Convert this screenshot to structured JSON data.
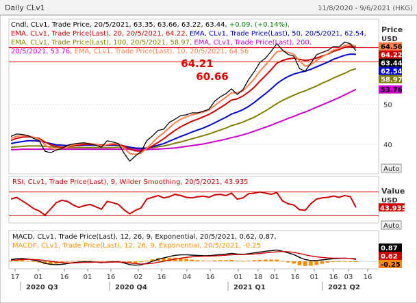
{
  "window": {
    "title": "Daily CLv1",
    "date_range": "11/8/2020 - 9/6/2021 (HKG)"
  },
  "price_panel": {
    "legend_lines": [
      [
        {
          "t": "Cndl, CLv1, Trade Price, 20/5/2021, 63.35, 63.66, 63.22, 63.44, ",
          "c": "#000000"
        },
        {
          "t": "+0.09, (+0.14%),",
          "c": "#008000"
        }
      ],
      [
        {
          "t": "EMA, CLv1, Trade Price(Last),  20,  20/5/2021, 64.22, ",
          "c": "#cc0000"
        },
        {
          "t": "EMA, CLv1, Trade Price(Last),   50,  20/5/2021, 62.54,",
          "c": "#0000cc"
        }
      ],
      [
        {
          "t": "EMA, CLv1, Trade Price(Last),  100,  20/5/2021, 58.97, ",
          "c": "#808000"
        },
        {
          "t": "EMA, CLv1, Trade Price(Last),  200,",
          "c": "#cc00cc"
        }
      ],
      [
        {
          "t": "20/5/2021, 53.76, ",
          "c": "#cc00cc"
        },
        {
          "t": "EMA, CLv1, Trade Price(Last),  10,  20/5/2021, 64.56",
          "c": "#ff7f50"
        }
      ]
    ],
    "axis_title": "Price",
    "axis_unit": "USD",
    "ticks": [
      "60",
      "50",
      "40"
    ],
    "auto_label": "Auto",
    "annotations": [
      "64.21",
      "60.66"
    ],
    "value_tags": [
      {
        "text": "64.56",
        "bg": "#ff7f50",
        "fg": "#000000"
      },
      {
        "text": "64.22",
        "bg": "#cc0000",
        "fg": "#ffffff"
      },
      {
        "text": "63.44",
        "bg": "#000000",
        "fg": "#ffffff"
      },
      {
        "text": "62.54",
        "bg": "#0000cc",
        "fg": "#ffffff"
      },
      {
        "text": "58.97",
        "bg": "#808000",
        "fg": "#ffffff"
      },
      {
        "text": "53.76",
        "bg": "#cc00cc",
        "fg": "#000000"
      }
    ]
  },
  "rsi_panel": {
    "legend": "RSI, CLv1, Trade Price(Last),   9,  Wilder Smoothing,  20/5/2021, 43.935",
    "axis_title": "Value",
    "axis_unit": "USD",
    "value_tag": {
      "text": "43.935",
      "bg": "#cc0000",
      "fg": "#ffffff"
    },
    "auto_label": "Auto"
  },
  "macd_panel": {
    "legend_lines": [
      "MACD, CLv1, Trade Price(Last),   12,  26,  9,  Exponential,  20/5/2021, 0.62, 0.87,",
      "MACDF, CLv1, Trade Price(Last),   12,  26,  9,  Exponential,  20/5/2021, -0.25"
    ],
    "value_tags": [
      {
        "text": "0.87",
        "bg": "#000000",
        "fg": "#ffffff"
      },
      {
        "text": "0.62",
        "bg": "#cc0000",
        "fg": "#ffffff"
      },
      {
        "text": "-0.25",
        "bg": "#ff8c00",
        "fg": "#000000"
      }
    ]
  },
  "x_axis": {
    "day_ticks": [
      "17",
      "01",
      "16",
      "01",
      "16",
      "02",
      "16",
      "04",
      "16",
      "01",
      "18",
      "01",
      "16",
      "01",
      "16",
      "03",
      "16",
      "01"
    ],
    "quarters": [
      "2020 Q3",
      "2020 Q4",
      "2021 Q1",
      "2021 Q2"
    ]
  },
  "chart_data": [
    {
      "type": "line",
      "title": "Daily CLv1",
      "ylabel": "Price USD",
      "x_range": [
        "11/8/2020",
        "9/6/2021"
      ],
      "ylim": [
        33,
        71
      ],
      "grid": true,
      "series": [
        {
          "name": "Cndl CLv1 Trade Price (close)",
          "color": "#000000",
          "values": [
            42.0,
            42.6,
            42.5,
            42.2,
            41.5,
            40.9,
            38.3,
            37.9,
            38.6,
            38.9,
            39.8,
            40.1,
            40.3,
            40.4,
            40.1,
            39.8,
            39.3,
            40.9,
            40.6,
            40.2,
            37.8,
            35.8,
            37.1,
            38.2,
            40.9,
            42.1,
            43.5,
            43.8,
            45.5,
            46.3,
            47.2,
            47.4,
            47.9,
            47.9,
            48.3,
            48.8,
            50.8,
            51.9,
            52.7,
            53.9,
            52.5,
            53.7,
            56.2,
            58.2,
            60.5,
            61.6,
            63.3,
            65.2,
            63.6,
            62.5,
            62.1,
            59.0,
            58.3,
            60.3,
            62.4,
            63.0,
            63.5,
            64.5,
            64.4,
            65.6,
            65.2,
            63.4
          ]
        },
        {
          "name": "EMA 10",
          "color": "#ff7f50",
          "values": [
            41.5,
            42.0,
            42.2,
            42.2,
            41.8,
            41.3,
            39.9,
            39.0,
            38.8,
            38.9,
            39.4,
            39.9,
            40.2,
            40.3,
            40.2,
            40.0,
            39.6,
            40.0,
            40.2,
            40.1,
            39.0,
            37.7,
            37.5,
            37.8,
            39.0,
            40.4,
            41.8,
            42.9,
            44.2,
            45.4,
            46.3,
            46.9,
            47.4,
            47.7,
            48.1,
            48.6,
            49.7,
            50.8,
            51.8,
            52.9,
            52.9,
            53.4,
            54.8,
            56.4,
            58.3,
            59.9,
            61.5,
            63.2,
            63.4,
            63.0,
            62.6,
            60.9,
            59.6,
            59.9,
            61.0,
            61.9,
            62.7,
            63.6,
            64.0,
            64.8,
            65.0,
            64.56
          ]
        },
        {
          "name": "EMA 20",
          "color": "#cc0000",
          "values": [
            41.0,
            41.5,
            41.8,
            41.9,
            41.8,
            41.5,
            40.6,
            39.9,
            39.5,
            39.3,
            39.4,
            39.6,
            39.8,
            40.0,
            40.0,
            40.0,
            39.8,
            39.9,
            40.0,
            40.0,
            39.6,
            38.8,
            38.4,
            38.3,
            38.8,
            39.6,
            40.5,
            41.4,
            42.5,
            43.5,
            44.4,
            45.1,
            45.8,
            46.3,
            46.9,
            47.5,
            48.3,
            49.2,
            50.1,
            51.1,
            51.4,
            52.1,
            53.1,
            54.3,
            55.8,
            57.2,
            58.7,
            60.3,
            61.0,
            61.4,
            61.6,
            61.3,
            61.0,
            61.2,
            61.6,
            62.1,
            62.6,
            63.3,
            63.7,
            64.3,
            64.6,
            64.22
          ]
        },
        {
          "name": "EMA 50",
          "color": "#0000cc",
          "values": [
            40.2,
            40.5,
            40.7,
            40.9,
            40.9,
            40.8,
            40.5,
            40.2,
            39.9,
            39.8,
            39.7,
            39.7,
            39.7,
            39.8,
            39.8,
            39.8,
            39.7,
            39.8,
            39.8,
            39.8,
            39.6,
            39.3,
            39.1,
            39.0,
            39.1,
            39.4,
            39.8,
            40.2,
            40.8,
            41.4,
            42.0,
            42.5,
            43.1,
            43.6,
            44.1,
            44.7,
            45.4,
            46.1,
            46.8,
            47.6,
            48.1,
            48.7,
            49.5,
            50.5,
            51.6,
            52.7,
            53.9,
            55.2,
            56.2,
            57.0,
            57.6,
            58.0,
            58.3,
            58.8,
            59.4,
            60.0,
            60.6,
            61.3,
            61.8,
            62.3,
            62.6,
            62.54
          ]
        },
        {
          "name": "EMA 100",
          "color": "#808000",
          "values": [
            39.3,
            39.4,
            39.5,
            39.6,
            39.6,
            39.6,
            39.5,
            39.4,
            39.3,
            39.2,
            39.2,
            39.2,
            39.2,
            39.2,
            39.2,
            39.2,
            39.2,
            39.2,
            39.2,
            39.3,
            39.2,
            39.1,
            39.0,
            39.0,
            39.1,
            39.2,
            39.4,
            39.6,
            39.9,
            40.3,
            40.6,
            41.0,
            41.4,
            41.8,
            42.2,
            42.6,
            43.1,
            43.6,
            44.1,
            44.7,
            45.1,
            45.6,
            46.2,
            46.8,
            47.6,
            48.4,
            49.3,
            50.2,
            51.0,
            51.7,
            52.3,
            52.9,
            53.4,
            54.0,
            54.6,
            55.3,
            55.9,
            56.6,
            57.2,
            57.8,
            58.5,
            58.97
          ]
        },
        {
          "name": "EMA 200",
          "color": "#cc00cc",
          "values": [
            38.7,
            38.7,
            38.8,
            38.8,
            38.8,
            38.8,
            38.8,
            38.8,
            38.8,
            38.8,
            38.8,
            38.8,
            38.8,
            38.8,
            38.8,
            38.8,
            38.8,
            38.8,
            38.8,
            38.8,
            38.8,
            38.8,
            38.7,
            38.7,
            38.7,
            38.8,
            38.8,
            38.9,
            39.0,
            39.1,
            39.3,
            39.5,
            39.7,
            39.9,
            40.1,
            40.4,
            40.7,
            41.0,
            41.3,
            41.7,
            42.0,
            42.4,
            42.8,
            43.3,
            43.8,
            44.3,
            44.8,
            45.4,
            45.9,
            46.5,
            47.0,
            47.6,
            48.1,
            48.7,
            49.3,
            49.9,
            50.5,
            51.1,
            51.7,
            52.4,
            53.1,
            53.76
          ]
        }
      ],
      "horizontal_lines": [
        64.21,
        60.66
      ]
    },
    {
      "type": "line",
      "title": "RSI",
      "ylim": [
        20,
        80
      ],
      "series": [
        {
          "name": "RSI 9",
          "color": "#cc0000",
          "values": [
            58,
            61,
            55,
            49,
            42,
            38,
            31,
            41,
            52,
            56,
            54,
            48,
            44,
            47,
            49,
            45,
            41,
            54,
            52,
            49,
            40,
            33,
            39,
            43,
            58,
            61,
            64,
            60,
            62,
            66,
            64,
            61,
            60,
            62,
            63,
            61,
            65,
            66,
            64,
            68,
            58,
            60,
            67,
            68,
            70,
            68,
            66,
            69,
            55,
            50,
            48,
            40,
            39,
            50,
            58,
            60,
            61,
            63,
            61,
            64,
            62,
            43.935
          ]
        }
      ],
      "horizontal_lines": [
        70,
        30
      ]
    },
    {
      "type": "line",
      "title": "MACD",
      "series": [
        {
          "name": "MACD 12,26,9",
          "color": "#000000",
          "values": [
            0.6,
            0.9,
            1.0,
            0.8,
            0.4,
            0.0,
            -0.7,
            -1.1,
            -1.2,
            -1.1,
            -0.8,
            -0.5,
            -0.3,
            -0.2,
            -0.2,
            -0.3,
            -0.5,
            -0.3,
            -0.2,
            -0.2,
            -0.6,
            -1.2,
            -1.4,
            -1.3,
            -0.7,
            0.0,
            0.7,
            1.2,
            1.7,
            2.1,
            2.3,
            2.3,
            2.2,
            2.1,
            2.0,
            2.0,
            2.2,
            2.4,
            2.6,
            2.8,
            2.6,
            2.5,
            2.7,
            3.0,
            3.3,
            3.6,
            3.8,
            4.0,
            3.6,
            3.0,
            2.4,
            1.4,
            0.6,
            0.3,
            0.3,
            0.5,
            0.7,
            0.9,
            1.0,
            1.1,
            1.0,
            0.87
          ]
        },
        {
          "name": "MACDF",
          "color": "#cc0000",
          "values": [
            0.4,
            0.5,
            0.6,
            0.7,
            0.6,
            0.5,
            0.3,
            0.0,
            -0.3,
            -0.5,
            -0.6,
            -0.6,
            -0.5,
            -0.4,
            -0.4,
            -0.3,
            -0.4,
            -0.4,
            -0.3,
            -0.3,
            -0.4,
            -0.6,
            -0.8,
            -1.0,
            -0.9,
            -0.7,
            -0.4,
            0.0,
            0.4,
            0.8,
            1.1,
            1.4,
            1.6,
            1.7,
            1.8,
            1.8,
            1.9,
            2.0,
            2.2,
            2.3,
            2.4,
            2.4,
            2.5,
            2.6,
            2.8,
            3.0,
            3.2,
            3.4,
            3.5,
            3.4,
            3.2,
            2.8,
            2.3,
            1.9,
            1.6,
            1.4,
            1.2,
            1.1,
            1.1,
            1.1,
            1.0,
            0.62
          ]
        },
        {
          "name": "MACDF histogram",
          "color": "#ff8c00",
          "values": [
            0.2,
            0.4,
            0.4,
            0.1,
            -0.2,
            -0.5,
            -1.0,
            -1.1,
            -0.9,
            -0.6,
            -0.2,
            0.1,
            0.2,
            0.2,
            0.2,
            0.0,
            -0.1,
            0.1,
            0.1,
            0.1,
            -0.2,
            -0.6,
            -0.6,
            -0.3,
            0.2,
            0.7,
            1.1,
            1.2,
            1.3,
            1.3,
            1.2,
            0.9,
            0.6,
            0.4,
            0.2,
            0.2,
            0.3,
            0.4,
            0.4,
            0.5,
            0.2,
            0.1,
            0.2,
            0.4,
            0.5,
            0.6,
            0.6,
            0.6,
            0.1,
            -0.4,
            -0.8,
            -1.4,
            -1.7,
            -1.6,
            -1.3,
            -0.9,
            -0.5,
            -0.2,
            -0.1,
            0.0,
            0.0,
            -0.25
          ]
        }
      ],
      "horizontal_lines": [
        0
      ]
    }
  ]
}
